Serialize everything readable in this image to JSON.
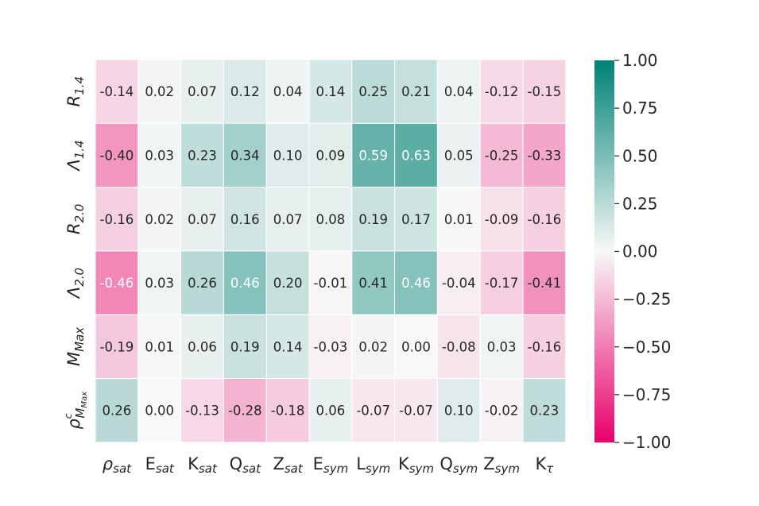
{
  "chart_data": {
    "type": "heatmap",
    "rows": [
      {
        "base": "R",
        "sub": "1.4"
      },
      {
        "base": "Λ",
        "sub": "1.4"
      },
      {
        "base": "R",
        "sub": "2.0"
      },
      {
        "base": "Λ",
        "sub": "2.0"
      },
      {
        "base": "M",
        "sub": "Max"
      },
      {
        "base": "ρ",
        "sub": "M",
        "sub2": "Max",
        "sup": "c"
      }
    ],
    "columns": [
      {
        "base": "ρ",
        "sub": "sat"
      },
      {
        "base": "E",
        "sub": "sat"
      },
      {
        "base": "K",
        "sub": "sat"
      },
      {
        "base": "Q",
        "sub": "sat"
      },
      {
        "base": "Z",
        "sub": "sat"
      },
      {
        "base": "E",
        "sub": "sym"
      },
      {
        "base": "L",
        "sub": "sym"
      },
      {
        "base": "K",
        "sub": "sym"
      },
      {
        "base": "Q",
        "sub": "sym"
      },
      {
        "base": "Z",
        "sub": "sym"
      },
      {
        "base": "K",
        "sub": "τ"
      }
    ],
    "values": [
      [
        -0.14,
        0.02,
        0.07,
        0.12,
        0.04,
        0.14,
        0.25,
        0.21,
        0.04,
        -0.12,
        -0.15
      ],
      [
        -0.4,
        0.03,
        0.23,
        0.34,
        0.1,
        0.09,
        0.59,
        0.63,
        0.05,
        -0.25,
        -0.33
      ],
      [
        -0.16,
        0.02,
        0.07,
        0.16,
        0.07,
        0.08,
        0.19,
        0.17,
        0.01,
        -0.09,
        -0.16
      ],
      [
        -0.46,
        0.03,
        0.26,
        0.46,
        0.2,
        -0.01,
        0.41,
        0.46,
        -0.04,
        -0.17,
        -0.41
      ],
      [
        -0.19,
        0.01,
        0.06,
        0.19,
        0.14,
        -0.03,
        0.02,
        -0.0,
        -0.08,
        0.03,
        -0.16
      ],
      [
        0.26,
        -0.0,
        -0.13,
        -0.28,
        -0.18,
        0.06,
        -0.07,
        -0.07,
        0.1,
        -0.02,
        0.23
      ]
    ],
    "vmin": -1.0,
    "vmax": 1.0,
    "colormap": {
      "negative": "#e8006a",
      "center": "#f8f8f8",
      "positive": "#008275"
    },
    "colorbar_ticks": [
      "1.00",
      "0.75",
      "0.50",
      "0.25",
      "0.00",
      "−0.25",
      "−0.50",
      "−0.75",
      "−1.00"
    ],
    "colorbar_tick_values": [
      1.0,
      0.75,
      0.5,
      0.25,
      0.0,
      -0.25,
      -0.5,
      -0.75,
      -1.0
    ]
  }
}
